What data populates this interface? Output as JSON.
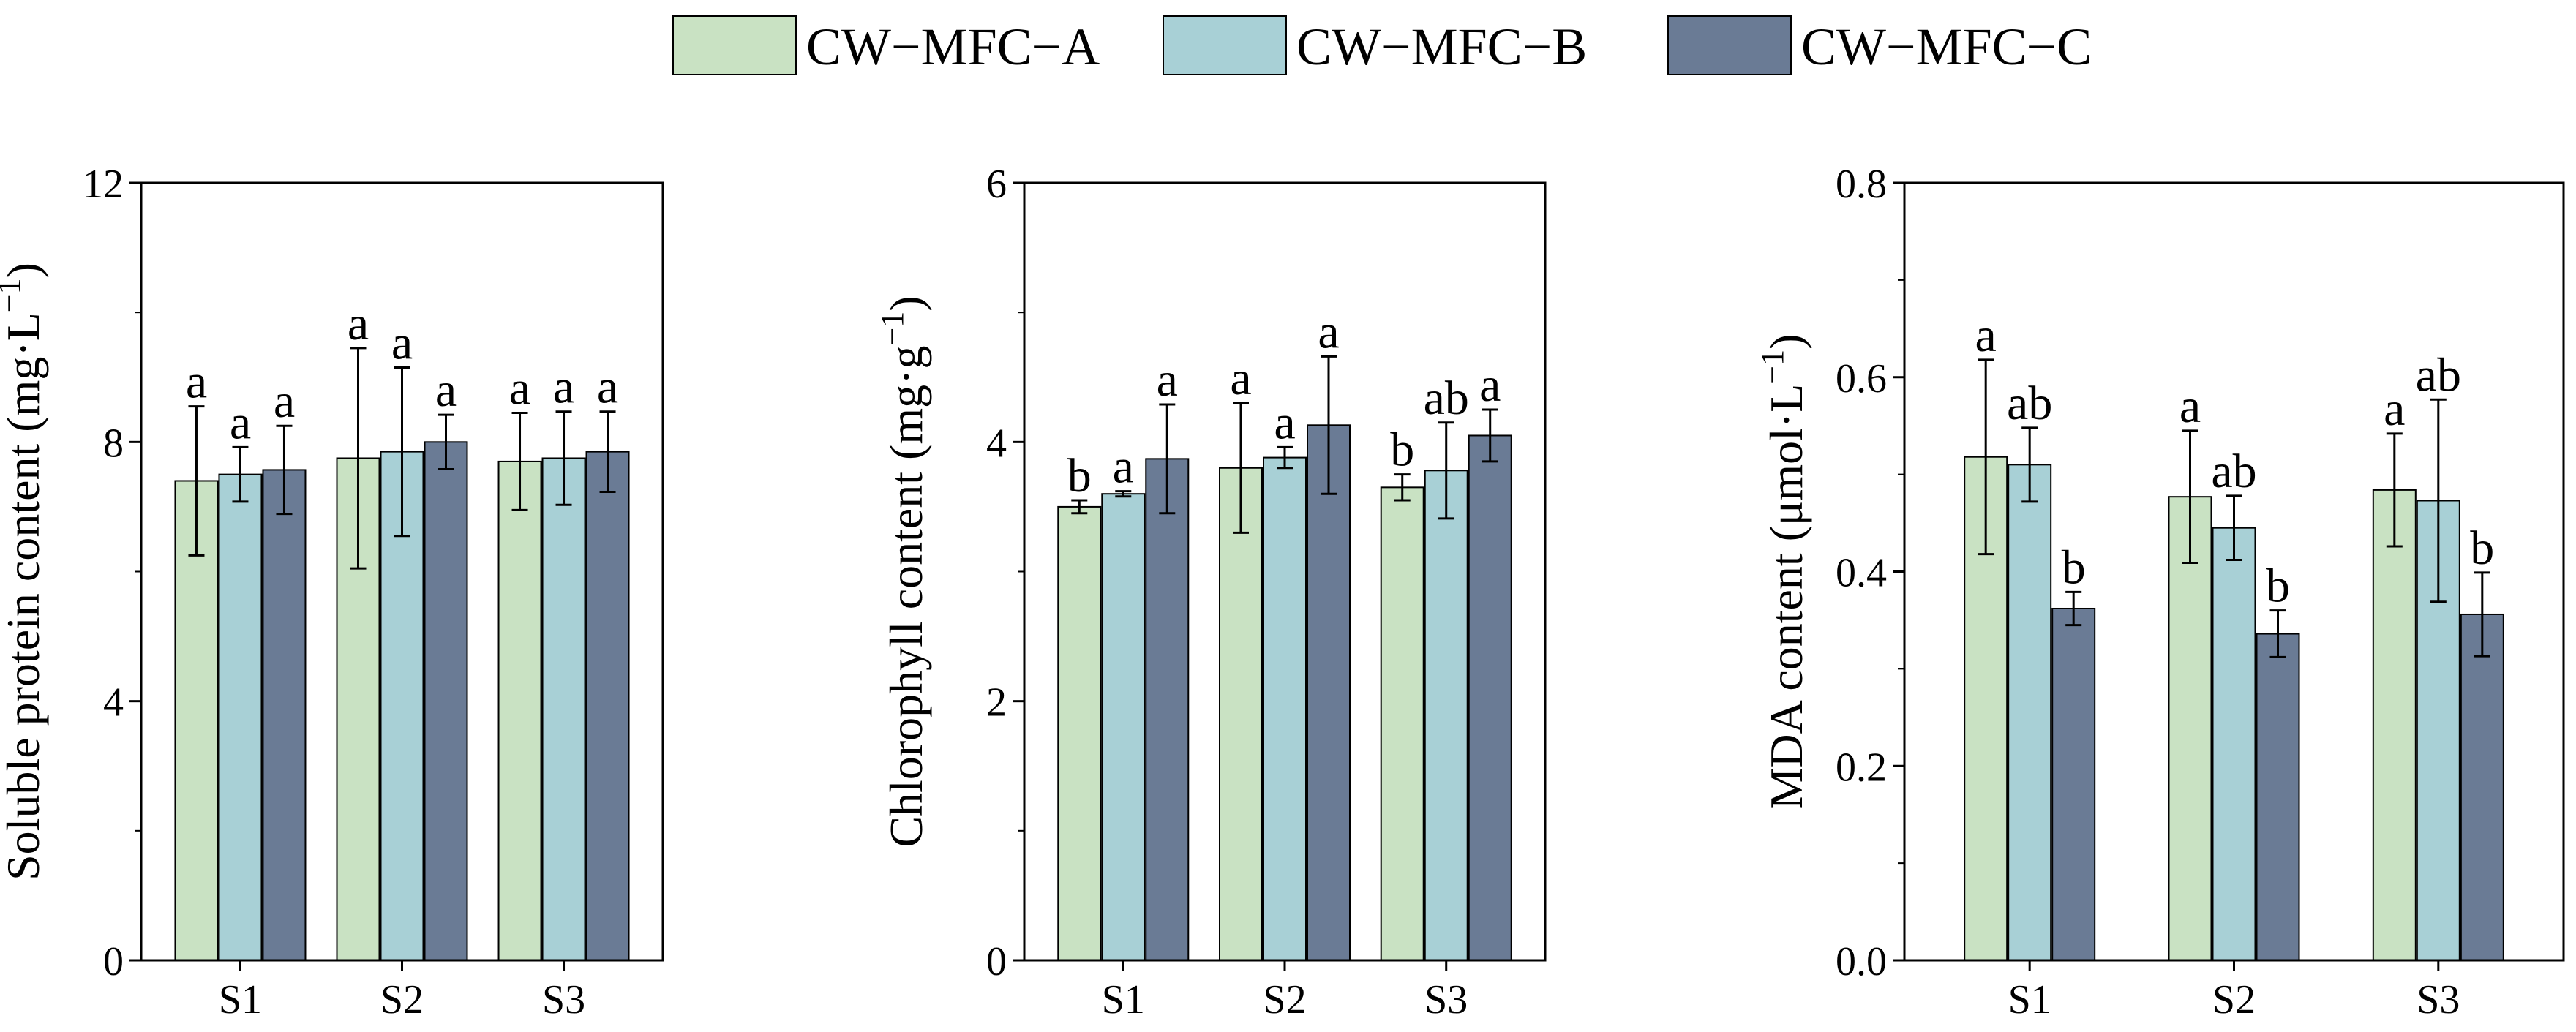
{
  "legend": {
    "entries": [
      {
        "name": "CW−MFC−A",
        "color": "#c9e2c3"
      },
      {
        "name": "CW−MFC−B",
        "color": "#a8d0d6"
      },
      {
        "name": "CW−MFC−C",
        "color": "#6a7b95"
      }
    ],
    "placement": "top-center"
  },
  "chart_data": [
    {
      "type": "bar",
      "ylabel": "Soluble protein content (mg·L",
      "ylabel_sup": "−1",
      "ylabel_tail": ")",
      "ylim": [
        0,
        12
      ],
      "yticks": [
        "0",
        "4",
        "8",
        "12"
      ],
      "categories": [
        "S1",
        "S2",
        "S3"
      ],
      "series": [
        {
          "name": "CW−MFC−A",
          "values": [
            7.4,
            7.75,
            7.7
          ],
          "errors": [
            1.15,
            1.7,
            0.75
          ],
          "labels": [
            "a",
            "a",
            "a"
          ]
        },
        {
          "name": "CW−MFC−B",
          "values": [
            7.5,
            7.85,
            7.75
          ],
          "errors": [
            0.42,
            1.3,
            0.72
          ],
          "labels": [
            "a",
            "a",
            "a"
          ]
        },
        {
          "name": "CW−MFC−C",
          "values": [
            7.57,
            8.0,
            7.85
          ],
          "errors": [
            0.68,
            0.42,
            0.62
          ],
          "labels": [
            "a",
            "a",
            "a"
          ]
        }
      ]
    },
    {
      "type": "bar",
      "ylabel": "Chlorophyll content (mg·g",
      "ylabel_sup": "−1",
      "ylabel_tail": ")",
      "ylim": [
        0,
        6
      ],
      "yticks": [
        "0",
        "2",
        "4",
        "6"
      ],
      "categories": [
        "S1",
        "S2",
        "S3"
      ],
      "series": [
        {
          "name": "CW−MFC−A",
          "values": [
            3.5,
            3.8,
            3.65
          ],
          "errors": [
            0.05,
            0.5,
            0.1
          ],
          "labels": [
            "b",
            "a",
            "b"
          ]
        },
        {
          "name": "CW−MFC−B",
          "values": [
            3.6,
            3.88,
            3.78
          ],
          "errors": [
            0.02,
            0.08,
            0.37
          ],
          "labels": [
            "a",
            "a",
            "ab"
          ]
        },
        {
          "name": "CW−MFC−C",
          "values": [
            3.87,
            4.13,
            4.05
          ],
          "errors": [
            0.42,
            0.53,
            0.2
          ],
          "labels": [
            "a",
            "a",
            "a"
          ]
        }
      ]
    },
    {
      "type": "bar",
      "ylabel": "MDA content (μmol·L",
      "ylabel_sup": "−1",
      "ylabel_tail": ")",
      "ylim": [
        0,
        0.8
      ],
      "yticks": [
        "0.0",
        "0.2",
        "0.4",
        "0.6",
        "0.8"
      ],
      "categories": [
        "S1",
        "S2",
        "S3"
      ],
      "series": [
        {
          "name": "CW−MFC−A",
          "values": [
            0.518,
            0.477,
            0.484
          ],
          "errors": [
            0.1,
            0.068,
            0.058
          ],
          "labels": [
            "a",
            "a",
            "a"
          ]
        },
        {
          "name": "CW−MFC−B",
          "values": [
            0.51,
            0.445,
            0.473
          ],
          "errors": [
            0.038,
            0.033,
            0.104
          ],
          "labels": [
            "ab",
            "ab",
            "ab"
          ]
        },
        {
          "name": "CW−MFC−C",
          "values": [
            0.362,
            0.336,
            0.356
          ],
          "errors": [
            0.017,
            0.024,
            0.043
          ],
          "labels": [
            "b",
            "b",
            "b"
          ]
        }
      ]
    }
  ]
}
